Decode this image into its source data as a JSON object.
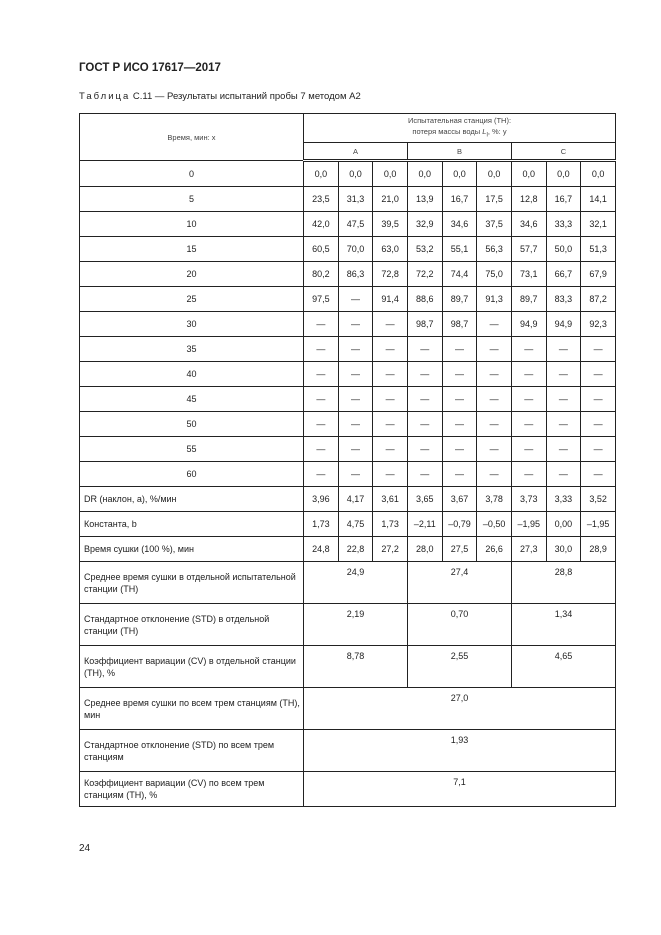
{
  "header": {
    "title": "ГОСТ Р ИСО 17617—2017"
  },
  "caption": {
    "prefix": "Таблица",
    "text": " С.11 — Результаты испытаний пробы 7 методом А2"
  },
  "table": {
    "col_header": "Время, мин: x",
    "group_header_1": "Испытательная станция (ТН):",
    "group_header_2": "потеря массы воды ",
    "group_header_sym": "L",
    "group_header_sub": "l",
    "group_header_3": ", %: y",
    "stations": [
      "A",
      "B",
      "C"
    ],
    "rows": [
      {
        "label": "0",
        "values": [
          "0,0",
          "0,0",
          "0,0",
          "0,0",
          "0,0",
          "0,0",
          "0,0",
          "0,0",
          "0,0"
        ]
      },
      {
        "label": "5",
        "values": [
          "23,5",
          "31,3",
          "21,0",
          "13,9",
          "16,7",
          "17,5",
          "12,8",
          "16,7",
          "14,1"
        ]
      },
      {
        "label": "10",
        "values": [
          "42,0",
          "47,5",
          "39,5",
          "32,9",
          "34,6",
          "37,5",
          "34,6",
          "33,3",
          "32,1"
        ]
      },
      {
        "label": "15",
        "values": [
          "60,5",
          "70,0",
          "63,0",
          "53,2",
          "55,1",
          "56,3",
          "57,7",
          "50,0",
          "51,3"
        ]
      },
      {
        "label": "20",
        "values": [
          "80,2",
          "86,3",
          "72,8",
          "72,2",
          "74,4",
          "75,0",
          "73,1",
          "66,7",
          "67,9"
        ]
      },
      {
        "label": "25",
        "values": [
          "97,5",
          "—",
          "91,4",
          "88,6",
          "89,7",
          "91,3",
          "89,7",
          "83,3",
          "87,2"
        ]
      },
      {
        "label": "30",
        "values": [
          "—",
          "—",
          "—",
          "98,7",
          "98,7",
          "—",
          "94,9",
          "94,9",
          "92,3"
        ]
      },
      {
        "label": "35",
        "values": [
          "—",
          "—",
          "—",
          "—",
          "—",
          "—",
          "—",
          "—",
          "—"
        ]
      },
      {
        "label": "40",
        "values": [
          "—",
          "—",
          "—",
          "—",
          "—",
          "—",
          "—",
          "—",
          "—"
        ]
      },
      {
        "label": "45",
        "values": [
          "—",
          "—",
          "—",
          "—",
          "—",
          "—",
          "—",
          "—",
          "—"
        ]
      },
      {
        "label": "50",
        "values": [
          "—",
          "—",
          "—",
          "—",
          "—",
          "—",
          "—",
          "—",
          "—"
        ]
      },
      {
        "label": "55",
        "values": [
          "—",
          "—",
          "—",
          "—",
          "—",
          "—",
          "—",
          "—",
          "—"
        ]
      },
      {
        "label": "60",
        "values": [
          "—",
          "—",
          "—",
          "—",
          "—",
          "—",
          "—",
          "—",
          "—"
        ]
      }
    ],
    "stat_rows": [
      {
        "label": "DR (наклон, a), %/мин",
        "values": [
          "3,96",
          "4,17",
          "3,61",
          "3,65",
          "3,67",
          "3,78",
          "3,73",
          "3,33",
          "3,52"
        ]
      },
      {
        "label": "Константа, b",
        "values": [
          "1,73",
          "4,75",
          "1,73",
          "–2,11",
          "–0,79",
          "–0,50",
          "–1,95",
          "0,00",
          "–1,95"
        ]
      },
      {
        "label": "Время сушки (100 %), мин",
        "values": [
          "24,8",
          "22,8",
          "27,2",
          "28,0",
          "27,5",
          "26,6",
          "27,3",
          "30,0",
          "28,9"
        ]
      }
    ],
    "station_rows": [
      {
        "label": "Среднее время сушки в отдельной испытательной станции (ТН)",
        "values": [
          "24,9",
          "27,4",
          "28,8"
        ]
      },
      {
        "label": "Стандартное отклонение (STD) в отдельной станции (ТН)",
        "values": [
          "2,19",
          "0,70",
          "1,34"
        ]
      },
      {
        "label": "Коэффициент вариации (CV) в отдельной станции (ТН), %",
        "values": [
          "8,78",
          "2,55",
          "4,65"
        ]
      }
    ],
    "overall_rows": [
      {
        "label": "Среднее время сушки по всем трем станциям (ТН), мин",
        "value": "27,0"
      },
      {
        "label": "Стандартное отклонение (STD) по всем трем станциям",
        "value": "1,93"
      },
      {
        "label": "Коэффициент вариации (CV) по всем трем станциям (ТН), %",
        "value": "7,1"
      }
    ]
  },
  "footer": {
    "page_number": "24"
  }
}
